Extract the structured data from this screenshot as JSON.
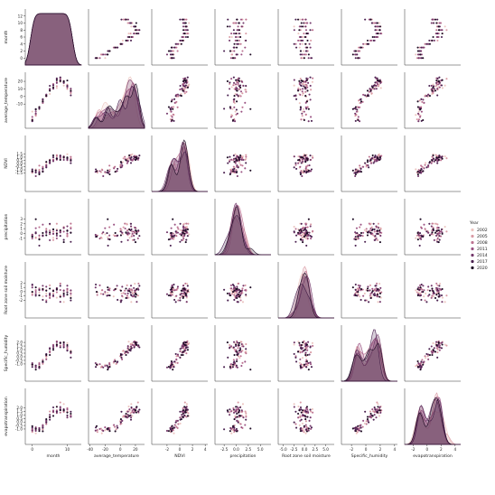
{
  "chart_data": {
    "type": "scatter",
    "subtype": "pairplot",
    "title": "",
    "variables": [
      "month",
      "average_temperature",
      "NDVI",
      "precipitation",
      "Root zone soil moisture",
      "Specific_humidity",
      "evapotranspiration"
    ],
    "ranges": {
      "month": [
        -2,
        14
      ],
      "average_temperature": [
        -42,
        32
      ],
      "NDVI": [
        -4.4,
        4.4
      ],
      "precipitation": [
        -4.4,
        7.2
      ],
      "Root zone soil moisture": [
        -6.2,
        7
      ],
      "Specific_humidity": [
        -3.4,
        4.4
      ],
      "evapotranspiration": [
        -3.2,
        4.8
      ]
    },
    "tick_labels": {
      "month": [
        "0",
        "10"
      ],
      "average_temperature": [
        "-40",
        "-20",
        "0",
        "20"
      ],
      "NDVI": [
        "-2",
        "0",
        "2",
        "4"
      ],
      "precipitation": [
        "-2.5",
        "0.0",
        "2.5",
        "5.0"
      ],
      "Root zone soil moisture": [
        "-5.0",
        "-2.5",
        "0.0",
        "2.5",
        "5.0"
      ],
      "Specific_humidity": [
        "-2",
        "0",
        "2",
        "4"
      ],
      "evapotranspiration": [
        "-2",
        "0",
        "2",
        "4"
      ]
    },
    "y_tick_labels": {
      "month": [
        "0",
        "2",
        "4",
        "6",
        "8",
        "10",
        "12"
      ],
      "average_temperature": [
        "-10",
        "0",
        "10",
        "20"
      ],
      "NDVI": [
        "-1.5",
        "-1.0",
        "-0.5",
        "0.0",
        "0.5",
        "1.0",
        "1.5"
      ],
      "precipitation": [
        "-1",
        "0",
        "1",
        "2",
        "3"
      ],
      "Root zone soil moisture": [
        "-2",
        "-1",
        "0",
        "1",
        "2"
      ],
      "Specific_humidity": [
        "-1.0",
        "-0.5",
        "0.0",
        "0.5",
        "1.0",
        "1.5",
        "2.0"
      ],
      "evapotranspiration": [
        "-1.0",
        "-0.5",
        "0.0",
        "0.5",
        "1.0",
        "1.5",
        "2.0"
      ]
    },
    "legend": {
      "title": "Year",
      "position": "right",
      "series": [
        {
          "name": "2002",
          "color": "#ecc5c0"
        },
        {
          "name": "2005",
          "color": "#d99aa4"
        },
        {
          "name": "2008",
          "color": "#bd7391"
        },
        {
          "name": "2011",
          "color": "#9a5282"
        },
        {
          "name": "2014",
          "color": "#73376a"
        },
        {
          "name": "2017",
          "color": "#4a2150"
        },
        {
          "name": "2020",
          "color": "#1e0c24"
        }
      ]
    },
    "grid": false
  }
}
